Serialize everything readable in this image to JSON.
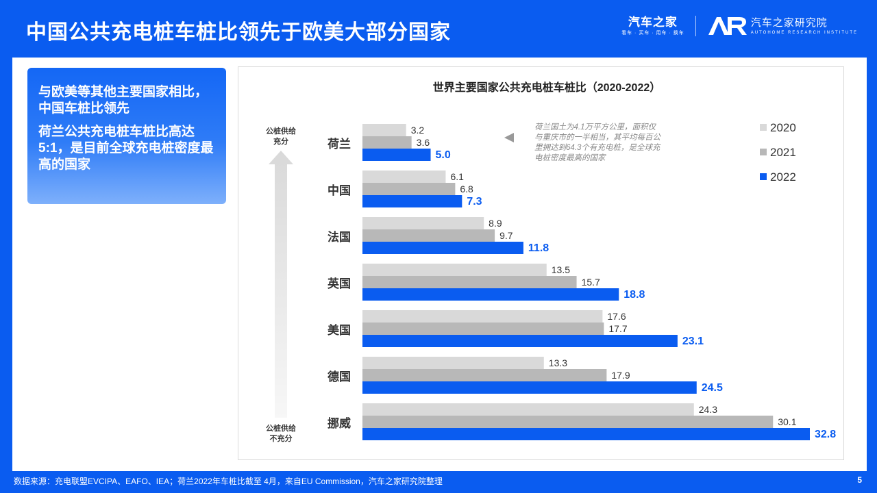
{
  "header": {
    "title": "中国公共充电桩车桩比领先于欧美大部分国家",
    "brand_name": "汽车之家",
    "brand_slogan": "看车 · 买车 · 用车 · 换车",
    "institute_name": "汽车之家研究院",
    "institute_sub": "AUTOHOME RESEARCH INSTITUTE"
  },
  "callout": {
    "line1": "与欧美等其他主要国家相比，中国车桩比领先",
    "line2": "荷兰公共充电桩车桩比高达5:1，是目前全球充电桩密度最高的国家"
  },
  "chart_data": {
    "type": "bar",
    "orientation": "horizontal",
    "title": "世界主要国家公共充电桩车桩比（2020-2022）",
    "categories": [
      "荷兰",
      "中国",
      "法国",
      "英国",
      "美国",
      "德国",
      "挪威"
    ],
    "series": [
      {
        "name": "2020",
        "color": "#d9d9d9",
        "values": [
          3.2,
          6.1,
          8.9,
          13.5,
          17.6,
          13.3,
          24.3
        ]
      },
      {
        "name": "2021",
        "color": "#b8b8b8",
        "values": [
          3.6,
          6.8,
          9.7,
          15.7,
          17.7,
          17.9,
          30.1
        ]
      },
      {
        "name": "2022",
        "color": "#0a5cf0",
        "values": [
          5.0,
          7.3,
          11.8,
          18.8,
          23.1,
          24.5,
          32.8
        ]
      }
    ],
    "value_labels": [
      [
        "3.2",
        "6.1",
        "8.9",
        "13.5",
        "17.6",
        "13.3",
        "24.3"
      ],
      [
        "3.6",
        "6.8",
        "9.7",
        "15.7",
        "17.7",
        "17.9",
        "30.1"
      ],
      [
        "5.0",
        "7.3",
        "11.8",
        "18.8",
        "23.1",
        "24.5",
        "32.8"
      ]
    ],
    "xlim": [
      0,
      32.8
    ],
    "grid": false,
    "legend_position": "top-right",
    "axis_top_label": [
      "公桩供给",
      "充分"
    ],
    "axis_bottom_label": [
      "公桩供给",
      "不充分"
    ],
    "annotation": [
      "荷兰国土为4.1万平方公里，面积仅",
      "与重庆市的一半相当，其平均每百公",
      "里拥达到64.3个有充电桩，是全球充",
      "电桩密度最高的国家"
    ]
  },
  "footer": {
    "source": "数据来源：充电联盟EVCIPA、EAFO、IEA；荷兰2022年车桩比截至 4月，来自EU Commission，汽车之家研究院整理",
    "page_number": "5"
  }
}
